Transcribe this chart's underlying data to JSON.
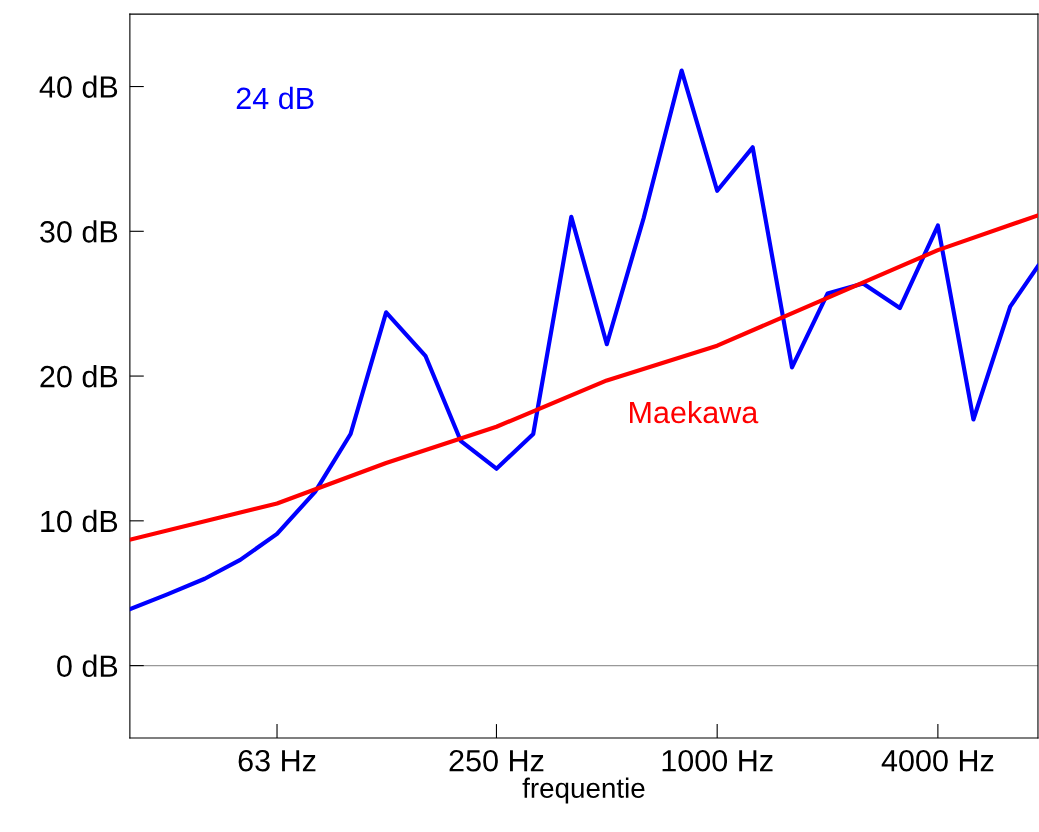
{
  "chart_data": {
    "type": "line",
    "xlabel": "frequentie",
    "log": "x",
    "xlim": [
      25,
      7500
    ],
    "ylim": [
      -5,
      45
    ],
    "xticks": [
      {
        "value": 63,
        "label": "63 Hz"
      },
      {
        "value": 250,
        "label": "250 Hz"
      },
      {
        "value": 1000,
        "label": "1000 Hz"
      },
      {
        "value": 4000,
        "label": "4000 Hz"
      }
    ],
    "yticks": [
      {
        "value": 0,
        "label": "0 dB"
      },
      {
        "value": 10,
        "label": "10 dB"
      },
      {
        "value": 20,
        "label": "20 dB"
      },
      {
        "value": 30,
        "label": "30 dB"
      },
      {
        "value": 40,
        "label": "40 dB"
      }
    ],
    "grid": false,
    "marker": "none",
    "line_style": "solid",
    "ref_lines": [
      {
        "axis": "y",
        "value": 0,
        "color": "#999999"
      }
    ],
    "series": [
      {
        "name": "24 dB",
        "color": "#0000ff",
        "x": [
          25,
          31.5,
          40,
          50,
          63,
          80,
          100,
          125,
          160,
          200,
          250,
          315,
          400,
          500,
          630,
          800,
          1000,
          1250,
          1600,
          2000,
          2500,
          3150,
          4000,
          5000,
          6300,
          7500
        ],
        "values": [
          3.9,
          4.9,
          6.0,
          7.3,
          9.1,
          12.0,
          16.0,
          24.4,
          21.4,
          15.5,
          13.6,
          16.0,
          31.0,
          22.2,
          30.9,
          41.1,
          32.8,
          35.8,
          20.6,
          25.7,
          26.4,
          24.7,
          30.4,
          17.0,
          24.8,
          27.6
        ]
      },
      {
        "name": "Maekawa",
        "color": "#ff0000",
        "x": [
          25,
          63,
          125,
          250,
          500,
          1000,
          2000,
          4000,
          7500
        ],
        "values": [
          8.7,
          11.2,
          14.0,
          16.5,
          19.7,
          22.1,
          25.4,
          28.7,
          31.1
        ]
      }
    ]
  }
}
